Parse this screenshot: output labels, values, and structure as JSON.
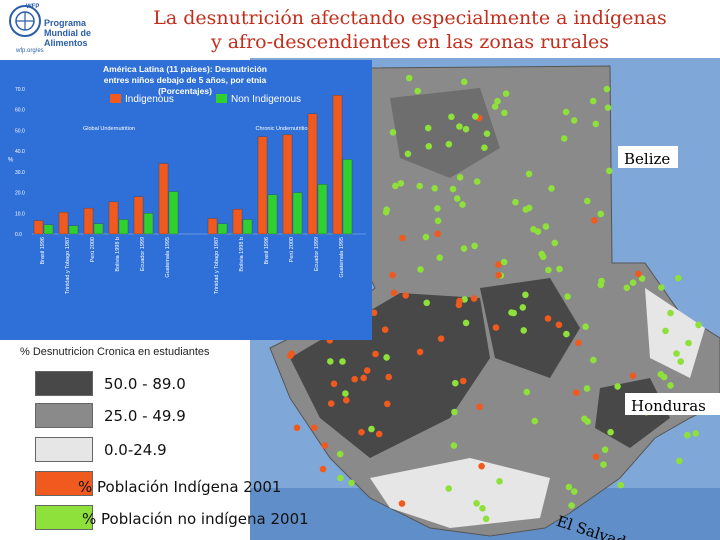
{
  "logo": {
    "acronym": "WFP",
    "line1": "Programa",
    "line2": "Mundial de",
    "line3": "Alimentos",
    "url": "wfp.org/es"
  },
  "title": {
    "line1": "La desnutrición afectando especialmente  a indígenas",
    "line2": "y afro-descendientes en las zonas rurales"
  },
  "chart_data": {
    "type": "bar",
    "title": "América Latina (11 países): Desnutrición entres niños debajo de 5 años, por etnia (Porcentajes)",
    "title_lines": [
      "América Latina (11 países): Desnutrición",
      "entres niños debajo de 5 años, por etnia",
      "(Porcentajes)"
    ],
    "ylabel": "%",
    "ylim": [
      0,
      70
    ],
    "yticks": [
      "0.0",
      "10.0",
      "20.0",
      "30.0",
      "40.0",
      "50.0",
      "60.0",
      "70.0"
    ],
    "grid": false,
    "legend_position": "top",
    "group_labels": [
      "Global Undernutrition",
      "Chronic Undernutrition"
    ],
    "groups": [
      {
        "label": "Global Undernutrition",
        "categories": [
          "Brasil 1996",
          "Trinidad y Tobago 1987",
          "Perú 2000",
          "Bolivia 1998 b",
          "Ecuador 1999",
          "Guatemala 1995"
        ],
        "series": [
          {
            "name": "Indigenous",
            "values": [
              6.5,
              10.5,
              12.5,
              15.5,
              18.0,
              34.0
            ]
          },
          {
            "name": "Non Indigenous",
            "values": [
              4.5,
              4.0,
              5.0,
              7.0,
              10.0,
              20.5
            ]
          }
        ]
      },
      {
        "label": "Chronic Undernutrition",
        "categories": [
          "Trinidad y Tobago 1987",
          "Bolivia 1998 b",
          "Brasil 1996",
          "Perú 2000",
          "Ecuador 1999",
          "Guatemala 1995"
        ],
        "series": [
          {
            "name": "Indigenous",
            "values": [
              7.5,
              12.0,
              47.0,
              48.0,
              58.0,
              67.0
            ]
          },
          {
            "name": "Non Indigenous",
            "values": [
              5.0,
              7.0,
              19.0,
              20.0,
              24.0,
              36.0
            ]
          }
        ]
      }
    ],
    "colors": {
      "Indigenous": "#f05a1e",
      "Non Indigenous": "#2fd02f"
    }
  },
  "legend": {
    "title": "% Desnutricion Cronica en estudiantes",
    "items": [
      {
        "label": "50.0 - 89.0",
        "color": "#484848"
      },
      {
        "label": "25.0 - 49.9",
        "color": "#8a8a8a"
      },
      {
        "label": "0.0-24.9",
        "color": "#e6e6e6"
      },
      {
        "label": "% Población Indígena 2001",
        "color": "#f05a1e"
      },
      {
        "label": "% Población no indígena 2001",
        "color": "#8ee03a"
      }
    ]
  },
  "places": {
    "belize": "Belize",
    "honduras": "Honduras",
    "el_salvador": "El Salvador"
  },
  "colors": {
    "title": "#c22e1c",
    "chart_bg": "#2f6fd8",
    "high": "#484848",
    "mid": "#8a8a8a",
    "low": "#e6e6e6",
    "indigenous_dot": "#f05a1e",
    "non_indigenous_dot": "#8ee03a"
  }
}
